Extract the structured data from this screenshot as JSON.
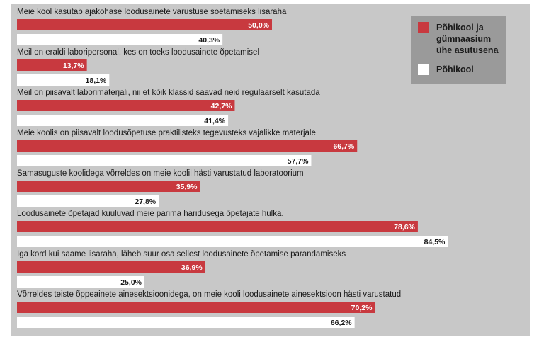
{
  "chart_data": {
    "type": "bar",
    "orientation": "horizontal",
    "categories": [
      "Meie kool kasutab ajakohase loodusainete varustuse soetamiseks lisaraha",
      "Meil on eraldi laboripersonal, kes on toeks loodusainete õpetamisel",
      "Meil on piisavalt laborimaterjali, nii et kõik klassid saavad neid regulaarselt kasutada",
      "Meie koolis on piisavalt loodusõpetuse praktilisteks tegevusteks vajalikke materjale",
      "Samasuguste koolidega võrreldes on meie koolil hästi varustatud laboratoorium",
      "Loodusainete õpetajad kuuluvad meie parima haridusega õpetajate hulka.",
      "Iga kord kui saame lisaraha, läheb suur osa sellest loodusainete õpetamise parandamiseks",
      "Võrreldes teiste õppeainete ainesektsioonidega, on meie kooli loodusainete ainesektsioon hästi varustatud"
    ],
    "series": [
      {
        "name": "Põhikool ja gümnaasium ühe asutusena",
        "color": "#c8393f",
        "values": [
          50.0,
          13.7,
          42.7,
          66.7,
          35.9,
          78.6,
          36.9,
          70.2
        ],
        "labels": [
          "50,0%",
          "13,7%",
          "42,7%",
          "66,7%",
          "35,9%",
          "78,6%",
          "36,9%",
          "70,2%"
        ]
      },
      {
        "name": "Põhikool",
        "color": "#ffffff",
        "values": [
          40.3,
          18.1,
          41.4,
          57.7,
          27.8,
          84.5,
          25.0,
          66.2
        ],
        "labels": [
          "40,3%",
          "18,1%",
          "41,4%",
          "57,7%",
          "27,8%",
          "84,5%",
          "25,0%",
          "66,2%"
        ]
      }
    ],
    "xlim": [
      0,
      100
    ],
    "legend": {
      "position": "top-right",
      "background": "#9a9a9a",
      "entries": [
        {
          "lines": [
            "Põhikool ja",
            "gümnaasium",
            "ühe asutusena"
          ],
          "color": "#c8393f"
        },
        {
          "lines": [
            "Põhikool"
          ],
          "color": "#ffffff"
        }
      ]
    },
    "background": "#c8c8c8"
  }
}
